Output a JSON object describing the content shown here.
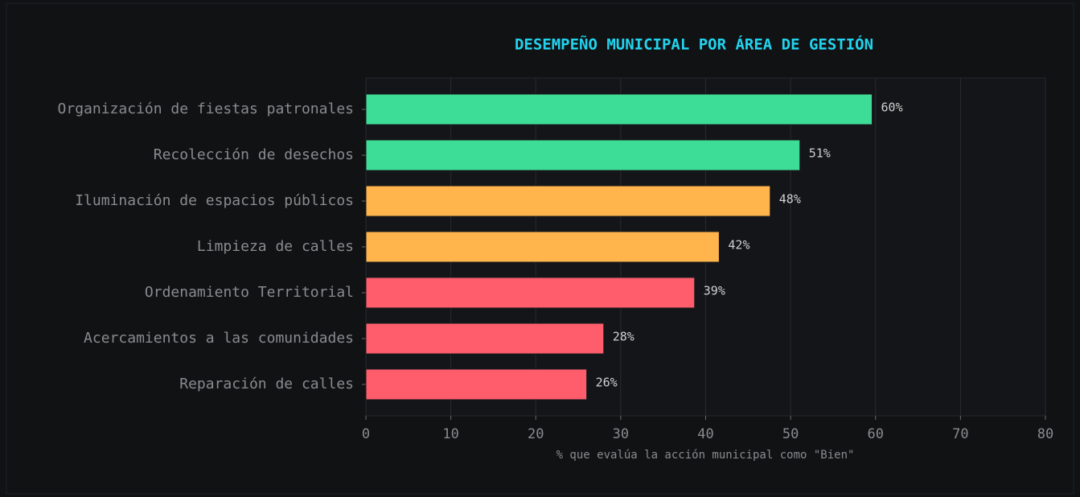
{
  "chart_data": {
    "type": "barh",
    "title": "DESEMPEÑO MUNICIPAL POR ÁREA DE GESTIÓN",
    "xlabel": "% que evalúa la acción municipal como \"Bien\"",
    "categories": [
      "Organización de fiestas patronales",
      "Recolección de desechos",
      "Iluminación de espacios públicos",
      "Limpieza de calles",
      "Ordenamiento Territorial",
      "Acercamientos a las comunidades",
      "Reparación de calles"
    ],
    "values": [
      59.6,
      51.1,
      47.6,
      41.6,
      38.7,
      28.0,
      26.0
    ],
    "value_labels": [
      "60%",
      "51%",
      "48%",
      "42%",
      "39%",
      "28%",
      "26%"
    ],
    "colors": [
      "#3ddc97",
      "#3ddc97",
      "#ffb44c",
      "#ffb44c",
      "#ff5c6c",
      "#ff5c6c",
      "#ff5c6c"
    ],
    "xlim": [
      0,
      80
    ],
    "xticks": [
      0,
      10,
      20,
      30,
      40,
      50,
      60,
      70,
      80
    ],
    "grid": true
  }
}
